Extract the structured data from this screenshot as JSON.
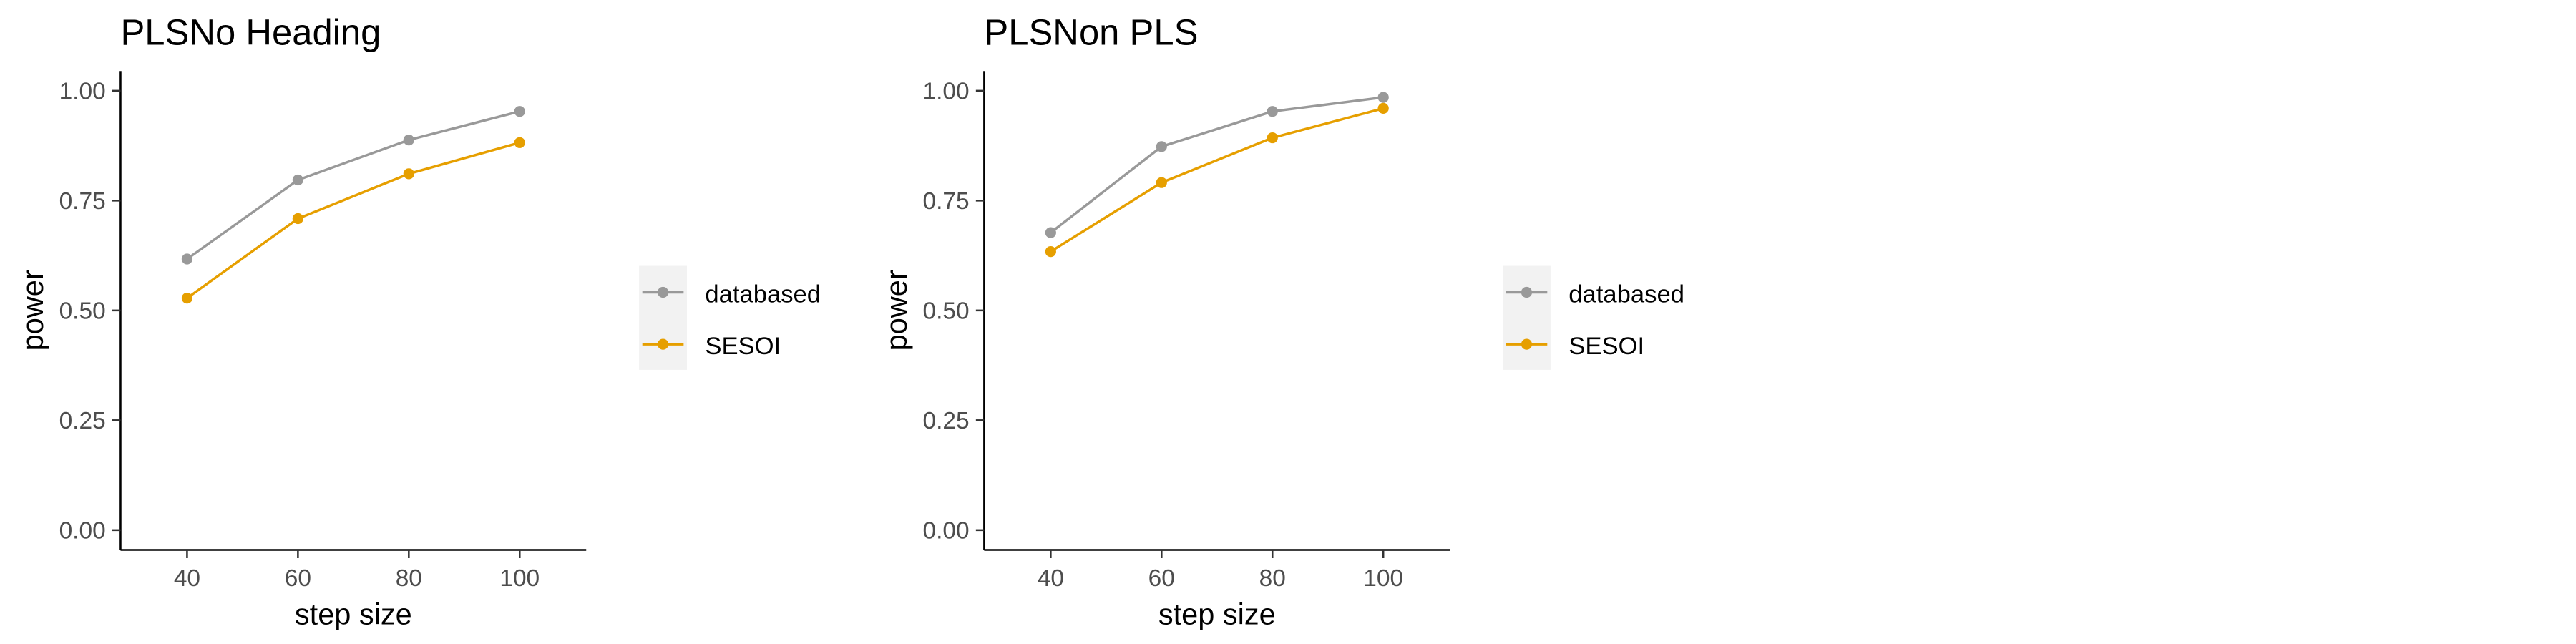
{
  "chart_data": [
    {
      "type": "line",
      "title": "PLSNo Heading",
      "xlabel": "step size",
      "ylabel": "power",
      "x": [
        40,
        60,
        80,
        100
      ],
      "xlim": [
        28,
        112
      ],
      "ylim": [
        -0.045,
        1.045
      ],
      "xticks": [
        40,
        60,
        80,
        100
      ],
      "xtick_labels": [
        "40",
        "60",
        "80",
        "100"
      ],
      "yticks": [
        0,
        0.25,
        0.5,
        0.75,
        1
      ],
      "ytick_labels": [
        "0.00",
        "0.25",
        "0.50",
        "0.75",
        "1.00"
      ],
      "grid": false,
      "legend_position": "right",
      "series": [
        {
          "name": "databased",
          "color": "#999999",
          "values": [
            0.617,
            0.797,
            0.888,
            0.953
          ]
        },
        {
          "name": "SESOI",
          "color": "#E69F00",
          "values": [
            0.528,
            0.709,
            0.811,
            0.882
          ]
        }
      ]
    },
    {
      "type": "line",
      "title": "PLSNon PLS",
      "xlabel": "step size",
      "ylabel": "power",
      "x": [
        40,
        60,
        80,
        100
      ],
      "xlim": [
        28,
        112
      ],
      "ylim": [
        -0.045,
        1.045
      ],
      "xticks": [
        40,
        60,
        80,
        100
      ],
      "xtick_labels": [
        "40",
        "60",
        "80",
        "100"
      ],
      "yticks": [
        0,
        0.25,
        0.5,
        0.75,
        1
      ],
      "ytick_labels": [
        "0.00",
        "0.25",
        "0.50",
        "0.75",
        "1.00"
      ],
      "grid": false,
      "legend_position": "right",
      "series": [
        {
          "name": "databased",
          "color": "#999999",
          "values": [
            0.677,
            0.873,
            0.953,
            0.985
          ]
        },
        {
          "name": "SESOI",
          "color": "#E69F00",
          "values": [
            0.634,
            0.791,
            0.893,
            0.96
          ]
        }
      ]
    }
  ]
}
